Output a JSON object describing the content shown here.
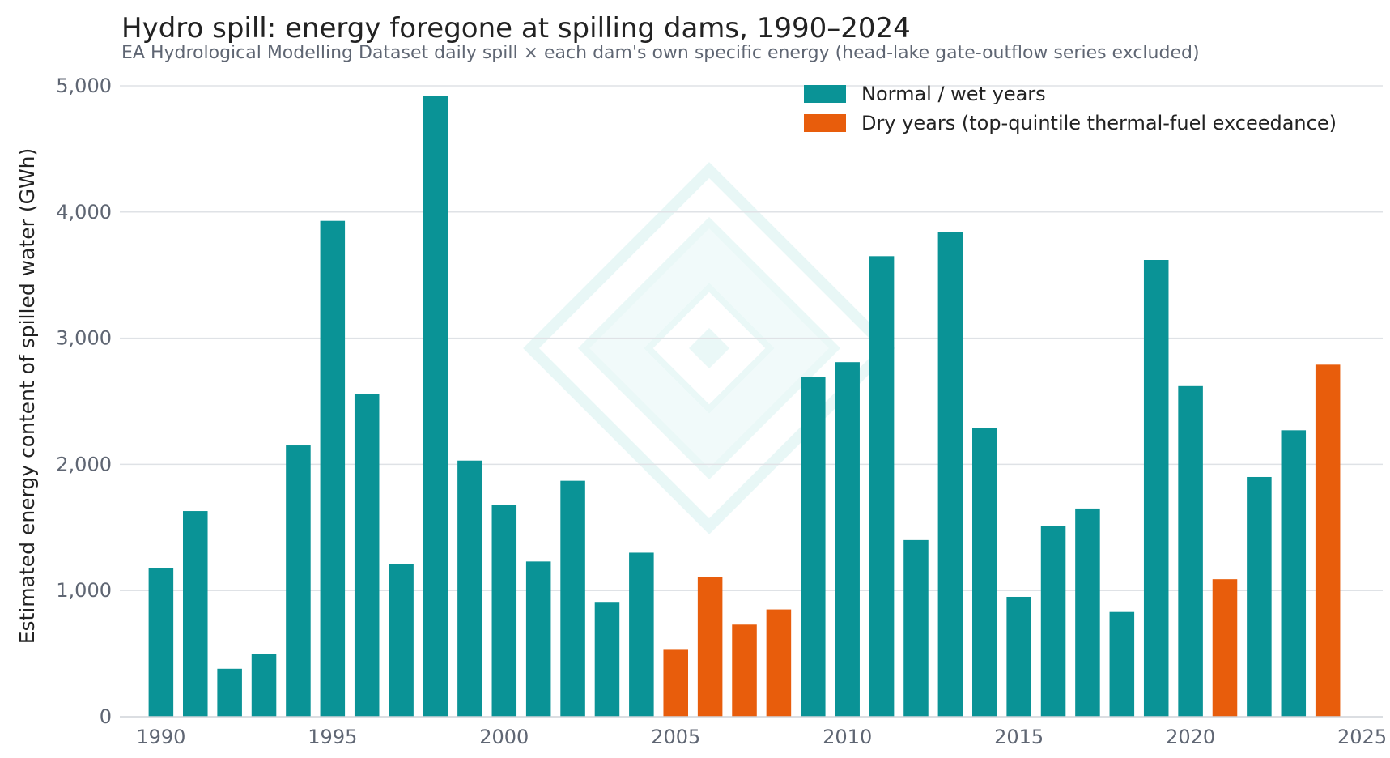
{
  "chart_data": {
    "type": "bar",
    "title": "Hydro spill: energy foregone at spilling dams, 1990–2024",
    "subtitle": "EA Hydrological Modelling Dataset daily spill × each dam's own specific energy (head-lake gate-outflow series excluded)",
    "xlabel": "",
    "ylabel": "Estimated energy content of spilled water (GWh)",
    "ylim": [
      0,
      5000
    ],
    "xlim": [
      1988.8,
      2025.6
    ],
    "y_ticks": [
      "0",
      "1,000",
      "2,000",
      "3,000",
      "4,000",
      "5,000"
    ],
    "y_tick_values": [
      0,
      1000,
      2000,
      3000,
      4000,
      5000
    ],
    "x_ticks": [
      "1990",
      "1995",
      "2000",
      "2005",
      "2010",
      "2015",
      "2020",
      "2025"
    ],
    "x_tick_values": [
      1990,
      1995,
      2000,
      2005,
      2010,
      2015,
      2020,
      2025
    ],
    "grid": "horizontal",
    "legend_position": "top-right",
    "series": [
      {
        "name": "Normal / wet years",
        "color": "#0a9396"
      },
      {
        "name": "Dry years (top-quintile thermal-fuel exceedance)",
        "color": "#e85d0c"
      }
    ],
    "bars": [
      {
        "year": 1990,
        "value": 1180,
        "group": 0
      },
      {
        "year": 1991,
        "value": 1630,
        "group": 0
      },
      {
        "year": 1992,
        "value": 380,
        "group": 0
      },
      {
        "year": 1993,
        "value": 500,
        "group": 0
      },
      {
        "year": 1994,
        "value": 2150,
        "group": 0
      },
      {
        "year": 1995,
        "value": 3930,
        "group": 0
      },
      {
        "year": 1996,
        "value": 2560,
        "group": 0
      },
      {
        "year": 1997,
        "value": 1210,
        "group": 0
      },
      {
        "year": 1998,
        "value": 4920,
        "group": 0
      },
      {
        "year": 1999,
        "value": 2030,
        "group": 0
      },
      {
        "year": 2000,
        "value": 1680,
        "group": 0
      },
      {
        "year": 2001,
        "value": 1230,
        "group": 0
      },
      {
        "year": 2002,
        "value": 1870,
        "group": 0
      },
      {
        "year": 2003,
        "value": 910,
        "group": 0
      },
      {
        "year": 2004,
        "value": 1300,
        "group": 0
      },
      {
        "year": 2005,
        "value": 530,
        "group": 1
      },
      {
        "year": 2006,
        "value": 1110,
        "group": 1
      },
      {
        "year": 2007,
        "value": 730,
        "group": 1
      },
      {
        "year": 2008,
        "value": 850,
        "group": 1
      },
      {
        "year": 2009,
        "value": 2690,
        "group": 0
      },
      {
        "year": 2010,
        "value": 2810,
        "group": 0
      },
      {
        "year": 2011,
        "value": 3650,
        "group": 0
      },
      {
        "year": 2012,
        "value": 1400,
        "group": 0
      },
      {
        "year": 2013,
        "value": 3840,
        "group": 0
      },
      {
        "year": 2014,
        "value": 2290,
        "group": 0
      },
      {
        "year": 2015,
        "value": 950,
        "group": 0
      },
      {
        "year": 2016,
        "value": 1510,
        "group": 0
      },
      {
        "year": 2017,
        "value": 1650,
        "group": 0
      },
      {
        "year": 2018,
        "value": 830,
        "group": 0
      },
      {
        "year": 2019,
        "value": 3620,
        "group": 0
      },
      {
        "year": 2020,
        "value": 2620,
        "group": 0
      },
      {
        "year": 2021,
        "value": 1090,
        "group": 1
      },
      {
        "year": 2022,
        "value": 1900,
        "group": 0
      },
      {
        "year": 2023,
        "value": 2270,
        "group": 0
      },
      {
        "year": 2024,
        "value": 2790,
        "group": 1
      }
    ]
  }
}
